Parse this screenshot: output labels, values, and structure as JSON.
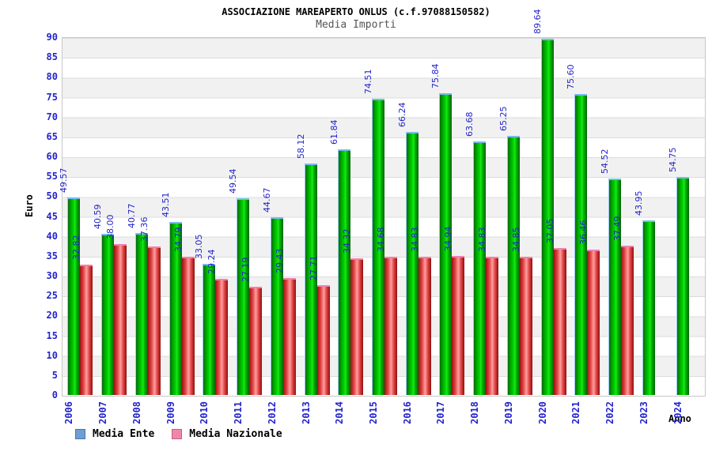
{
  "chart_data": {
    "type": "bar",
    "title": "ASSOCIAZIONE MAREAPERTO ONLUS (c.f.97088150582)",
    "subtitle": "Media Importi",
    "xlabel": "Anno",
    "ylabel": "Euro",
    "ylim": [
      0,
      90
    ],
    "ytick_step": 5,
    "grid": "horizontal gridlines every 5 with alternating gray/white bands",
    "legend_position": "bottom-left",
    "value_label_format": "2 decimals, rotated 90deg, blue",
    "categories": [
      "2006",
      "2007",
      "2008",
      "2009",
      "2010",
      "2011",
      "2012",
      "2013",
      "2014",
      "2015",
      "2016",
      "2017",
      "2018",
      "2019",
      "2020",
      "2021",
      "2022",
      "2023",
      "2024"
    ],
    "series": [
      {
        "name": "Media Ente",
        "bar_style": "green cylinder gradient",
        "values": [
          49.57,
          40.59,
          40.77,
          43.51,
          33.05,
          49.54,
          44.67,
          58.12,
          61.84,
          74.51,
          66.24,
          75.84,
          63.68,
          65.25,
          89.64,
          75.6,
          54.52,
          43.95,
          54.75
        ]
      },
      {
        "name": "Media Nazionale",
        "bar_style": "red cylinder gradient",
        "values": [
          32.82,
          38.0,
          37.36,
          34.79,
          29.24,
          27.19,
          29.43,
          27.71,
          34.32,
          34.68,
          34.83,
          34.94,
          34.83,
          34.85,
          37.05,
          36.46,
          37.49,
          null,
          null
        ]
      }
    ]
  },
  "colors": {
    "bar_ente_main": "#00c800",
    "bar_ente_cap": "#76bbea",
    "bar_nazionale_main": "#e03030",
    "bar_nazionale_cap": "#f07fb0",
    "legend_ente_swatch": "#6e9ed2",
    "legend_ente_border": "#4878aa",
    "legend_nazionale_swatch": "#ef87a7",
    "legend_nazionale_border": "#c95f85",
    "axis_text": "#2424cc",
    "band_gray": "#f1f1f1",
    "gridline": "#dcdcdc"
  }
}
